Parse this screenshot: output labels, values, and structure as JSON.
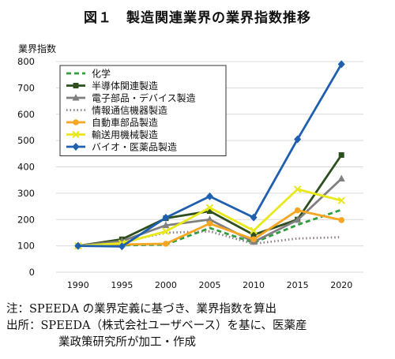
{
  "title": "図１　製造関連業界の業界指数推移",
  "chart_data": {
    "type": "line",
    "ylabel": "業界指数",
    "xlabel": "",
    "x": [
      "1990",
      "1995",
      "2000",
      "2005",
      "2010",
      "2015",
      "2020"
    ],
    "ylim": [
      0,
      800
    ],
    "yticks": [
      0,
      100,
      200,
      300,
      400,
      500,
      600,
      700,
      800
    ],
    "grid": true,
    "legend_position": "top-left",
    "series": [
      {
        "name": "化学",
        "color": "#2e9e3e",
        "style": "dash",
        "marker": "none",
        "values": [
          100,
          102,
          105,
          168,
          112,
          180,
          237
        ]
      },
      {
        "name": "半導体関連製造",
        "color": "#2d4f1e",
        "style": "solid",
        "marker": "square",
        "values": [
          100,
          125,
          205,
          232,
          142,
          200,
          445
        ]
      },
      {
        "name": "電子部品・デバイス製造",
        "color": "#808080",
        "style": "solid",
        "marker": "triangle",
        "values": [
          100,
          118,
          178,
          200,
          115,
          198,
          355
        ]
      },
      {
        "name": "情報通信機器製造",
        "color": "#8c7f7f",
        "style": "dot",
        "marker": "none",
        "values": [
          100,
          115,
          150,
          155,
          108,
          128,
          133
        ]
      },
      {
        "name": "自動車部品製造",
        "color": "#f5a623",
        "style": "solid",
        "marker": "circle",
        "values": [
          100,
          105,
          108,
          185,
          125,
          235,
          198
        ]
      },
      {
        "name": "輸送用機械製造",
        "color": "#e8e81a",
        "style": "solid",
        "marker": "x",
        "values": [
          100,
          110,
          155,
          245,
          158,
          315,
          272
        ]
      },
      {
        "name": "バイオ・医薬品製造",
        "color": "#1f5fb0",
        "style": "solid",
        "marker": "diamond",
        "values": [
          100,
          98,
          207,
          288,
          208,
          505,
          790
        ]
      }
    ]
  },
  "notes": {
    "line1": "注：SPEEDA の業界定義に基づき、業界指数を算出",
    "line2": "出所：SPEEDA（株式会社ユーザベース）を基に、医薬産",
    "line3": "業政策研究所が加工・作成"
  }
}
